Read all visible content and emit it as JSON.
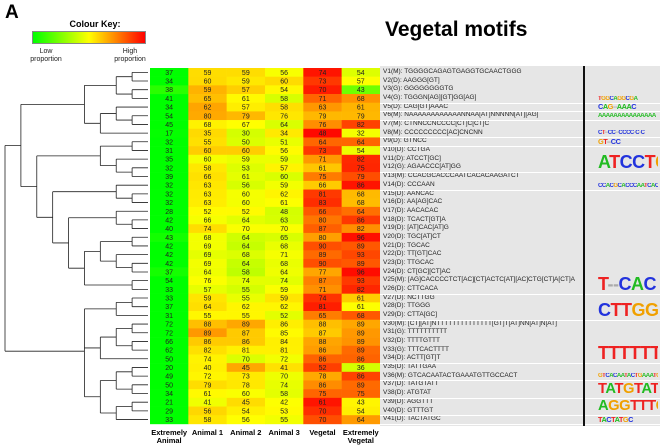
{
  "panel_letter": "A",
  "colour_key": {
    "title": "Colour Key:",
    "low": "Low proportion",
    "high": "High proportion",
    "colors": [
      "#00ff00",
      "#ffff00",
      "#ff0000"
    ]
  },
  "title": "Vegetal motifs",
  "chart_data": {
    "type": "heatmap",
    "title": "Vegetal motifs",
    "columns": [
      "Extremely Animal",
      "Animal 1",
      "Animal 2",
      "Animal 3",
      "Vegetal",
      "Extremely Vegetal"
    ],
    "scaling": "row",
    "colormap": [
      "#00ff00",
      "#ffff00",
      "#ff0000"
    ],
    "rows": [
      {
        "label": "V1(M): TGGGGCAGAGTGAGGTGCAACTGGG",
        "values": [
          37,
          59,
          59,
          56,
          74,
          54
        ]
      },
      {
        "label": "V2(D): AAGGG[GT]",
        "values": [
          34,
          60,
          59,
          60,
          73,
          57
        ]
      },
      {
        "label": "V3(G): GGGGGGGGTG",
        "values": [
          38,
          59,
          57,
          54,
          70,
          43
        ]
      },
      {
        "label": "V4(G): TGGGN[AG][GT]GG[AG]",
        "values": [
          41,
          65,
          61,
          58,
          71,
          68
        ]
      },
      {
        "label": "V5(D): CAG[GT]AAAC",
        "values": [
          34,
          62,
          57,
          58,
          63,
          61
        ]
      },
      {
        "label": "V6(M): NAAAAAAAAAAAANNAA[AT]NNNNN[AT][AG]",
        "values": [
          54,
          80,
          79,
          76,
          79,
          79
        ]
      },
      {
        "label": "V7(M): CTNNCCNCCCC[CT]C[CT]C",
        "values": [
          45,
          68,
          67,
          64,
          76,
          82
        ]
      },
      {
        "label": "V8(M): CCCCCCCCC[AC]CNCNN",
        "values": [
          17,
          35,
          30,
          34,
          48,
          32
        ]
      },
      {
        "label": "V9(D): GTNCC",
        "values": [
          32,
          55,
          50,
          51,
          64,
          64
        ]
      },
      {
        "label": "V10(D): CCTGA",
        "values": [
          31,
          60,
          60,
          56,
          73,
          54
        ]
      },
      {
        "label": "V11(D): ATCCT[GC]",
        "values": [
          35,
          60,
          59,
          59,
          71,
          82
        ]
      },
      {
        "label": "V12(G): AGAACCC[AT]GG",
        "values": [
          32,
          58,
          53,
          57,
          61,
          75
        ]
      },
      {
        "label": "V13(M): CCACGCACCCAATCACACAAGATCT",
        "values": [
          39,
          66,
          61,
          60,
          75,
          79
        ]
      },
      {
        "label": "V14(D): CCCAAN",
        "values": [
          32,
          63,
          56,
          59,
          66,
          86
        ]
      },
      {
        "label": "V15(D): AANCAC",
        "values": [
          32,
          63,
          60,
          62,
          81,
          68
        ]
      },
      {
        "label": "V16(D): AA[AG]CAC",
        "values": [
          32,
          63,
          60,
          61,
          83,
          68
        ]
      },
      {
        "label": "V17(D): AACACAC",
        "values": [
          28,
          52,
          52,
          48,
          66,
          64
        ]
      },
      {
        "label": "V18(D): TCACT[GT]A",
        "values": [
          42,
          66,
          64,
          63,
          80,
          86
        ]
      },
      {
        "label": "V19(D): [AT]CAC[AT]G",
        "values": [
          40,
          74,
          70,
          70,
          87,
          82
        ]
      },
      {
        "label": "V20(D): TGC[AT]CT",
        "values": [
          43,
          68,
          64,
          65,
          80,
          96
        ]
      },
      {
        "label": "V21(D): TGCAC",
        "values": [
          42,
          69,
          64,
          68,
          90,
          89
        ]
      },
      {
        "label": "V22(D): TT[GT]CAC",
        "values": [
          42,
          69,
          68,
          71,
          89,
          93
        ]
      },
      {
        "label": "V23(D): TTGCAC",
        "values": [
          42,
          69,
          64,
          68,
          90,
          89
        ]
      },
      {
        "label": "V24(D): CT[GC][CT]AC",
        "values": [
          37,
          64,
          58,
          64,
          77,
          96
        ]
      },
      {
        "label": "V25(M): [AG]CACCCCTCT[AC][CT]ACTC[AT][AC]CTG[CT]A[CT]A",
        "values": [
          54,
          76,
          74,
          74,
          87,
          93
        ]
      },
      {
        "label": "V26(D): CTTCACA",
        "values": [
          33,
          57,
          55,
          59,
          71,
          82
        ]
      },
      {
        "label": "V27(D): NCTTGG",
        "values": [
          33,
          59,
          55,
          59,
          74,
          61
        ]
      },
      {
        "label": "V28(D): TTGGG",
        "values": [
          37,
          64,
          62,
          62,
          81,
          61
        ]
      },
      {
        "label": "V29(D): CTTA[GC]",
        "values": [
          31,
          55,
          55,
          52,
          65,
          68
        ]
      },
      {
        "label": "V30(M): [CT][AT]NTTTTTTTTTTTTTT[GT]T[AT]NN[AT]N[AT]",
        "values": [
          72,
          88,
          89,
          86,
          88,
          89
        ]
      },
      {
        "label": "V31(G): TTTTTTTTTT",
        "values": [
          72,
          89,
          87,
          85,
          87,
          89
        ]
      },
      {
        "label": "V32(D): TTTTGTTT",
        "values": [
          66,
          86,
          86,
          84,
          88,
          89
        ]
      },
      {
        "label": "V33(G): TTTCACTTTT",
        "values": [
          62,
          82,
          81,
          81,
          86,
          89
        ]
      },
      {
        "label": "V34(D): ACTT[GT]T",
        "values": [
          50,
          74,
          70,
          72,
          86,
          86
        ]
      },
      {
        "label": "V35(D): TATTGAA",
        "values": [
          20,
          40,
          45,
          41,
          52,
          36
        ]
      },
      {
        "label": "V36(M): GTCACAATACTGAAATGTTGCCACT",
        "values": [
          49,
          72,
          73,
          70,
          78,
          86
        ]
      },
      {
        "label": "V37(D): TATGTATT",
        "values": [
          50,
          79,
          78,
          74,
          86,
          89
        ]
      },
      {
        "label": "V38(D): ATGTAT",
        "values": [
          34,
          61,
          60,
          58,
          75,
          75
        ]
      },
      {
        "label": "V39(D): AGGTTT",
        "values": [
          21,
          41,
          45,
          42,
          61,
          43
        ]
      },
      {
        "label": "V40(D): GTTTGT",
        "values": [
          29,
          56,
          54,
          53,
          70,
          54
        ]
      },
      {
        "label": "V41(D): TACTATGC",
        "values": [
          33,
          58,
          56,
          55,
          70,
          64
        ]
      }
    ]
  },
  "logos": [
    {
      "rows": [
        1,
        4
      ],
      "letters": "TGGCAGGCGA"
    },
    {
      "rows": [
        5,
        5
      ],
      "letters": "CAG--AAAC"
    },
    {
      "rows": [
        6,
        6
      ],
      "letters": "AAAAAAAAAAAAAAA"
    },
    {
      "rows": [
        7,
        8
      ],
      "letters": "CT--CC--CCCC-C-C"
    },
    {
      "rows": [
        9,
        9
      ],
      "letters": "GT--CC"
    },
    {
      "rows": [
        10,
        12
      ],
      "letters": "ATCCTG"
    },
    {
      "rows": [
        13,
        14
      ],
      "letters": "CCACGCACCCAATCACAC"
    },
    {
      "rows": [
        15,
        26
      ],
      "letters": "T--CAC"
    },
    {
      "rows": [
        27,
        29
      ],
      "letters": "CTTGG"
    },
    {
      "rows": [
        30,
        34
      ],
      "letters": "TTTTTTTT"
    },
    {
      "rows": [
        35,
        36
      ],
      "letters": "GTCACAATACTGAAATG"
    },
    {
      "rows": [
        37,
        38
      ],
      "letters": "TATGTATT"
    },
    {
      "rows": [
        39,
        40
      ],
      "letters": "AGGTTTGT"
    },
    {
      "rows": [
        41,
        41
      ],
      "letters": "TACTATGC"
    }
  ]
}
